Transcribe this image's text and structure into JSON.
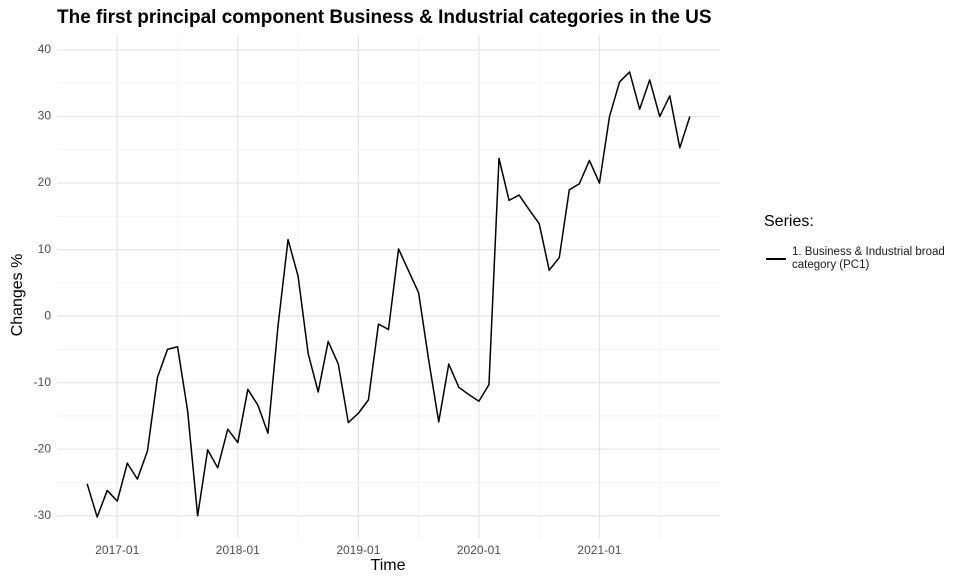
{
  "chart_data": {
    "type": "line",
    "title": "The first principal component Business & Industrial categories in the US",
    "x_label": "Time",
    "y_label": "Changes %",
    "legend_title": "Series:",
    "x": [
      "2016-10",
      "2016-11",
      "2016-12",
      "2017-01",
      "2017-02",
      "2017-03",
      "2017-04",
      "2017-05",
      "2017-06",
      "2017-07",
      "2017-08",
      "2017-09",
      "2017-10",
      "2017-11",
      "2017-12",
      "2018-01",
      "2018-02",
      "2018-03",
      "2018-04",
      "2018-05",
      "2018-06",
      "2018-07",
      "2018-08",
      "2018-09",
      "2018-10",
      "2018-11",
      "2018-12",
      "2019-01",
      "2019-02",
      "2019-03",
      "2019-04",
      "2019-05",
      "2019-06",
      "2019-07",
      "2019-08",
      "2019-09",
      "2019-10",
      "2019-11",
      "2019-12",
      "2020-01",
      "2020-02",
      "2020-03",
      "2020-04",
      "2020-05",
      "2020-06",
      "2020-07",
      "2020-08",
      "2020-09",
      "2020-10",
      "2020-11",
      "2020-12",
      "2021-01",
      "2021-02",
      "2021-03",
      "2021-04",
      "2021-05",
      "2021-06",
      "2021-07",
      "2021-08",
      "2021-09",
      "2021-10"
    ],
    "series": [
      {
        "name": "1. Business & Industrial broad category (PC1)",
        "color": "#000000",
        "values": [
          -25.2,
          -30.2,
          -26.2,
          -27.8,
          -22.1,
          -24.5,
          -20.3,
          -9.2,
          -5.0,
          -4.6,
          -14.2,
          -30.0,
          -20.1,
          -22.8,
          -17.0,
          -19.0,
          -11.0,
          -13.4,
          -17.6,
          -1.5,
          11.5,
          6.0,
          -5.6,
          -11.4,
          -3.8,
          -7.2,
          -16.0,
          -14.6,
          -12.6,
          -1.2,
          -2.0,
          10.1,
          6.8,
          3.5,
          -6.6,
          -15.9,
          -7.2,
          -10.7,
          -11.8,
          -12.8,
          -10.3,
          23.7,
          17.4,
          18.2,
          16.0,
          13.9,
          6.9,
          8.8,
          19.0,
          19.9,
          23.4,
          20.0,
          30.0,
          35.2,
          36.7,
          31.1,
          35.5,
          30.0,
          33.1,
          25.3,
          30.0
        ]
      }
    ],
    "xlim": [
      "2016-07",
      "2022-01"
    ],
    "xticks": [
      "2017-01",
      "2018-01",
      "2019-01",
      "2020-01",
      "2021-01"
    ],
    "ylim": [
      -33.5,
      40
    ],
    "yticks": [
      -30,
      -20,
      -10,
      0,
      10,
      20,
      30,
      40
    ],
    "grid": true,
    "legend_position": "right"
  }
}
